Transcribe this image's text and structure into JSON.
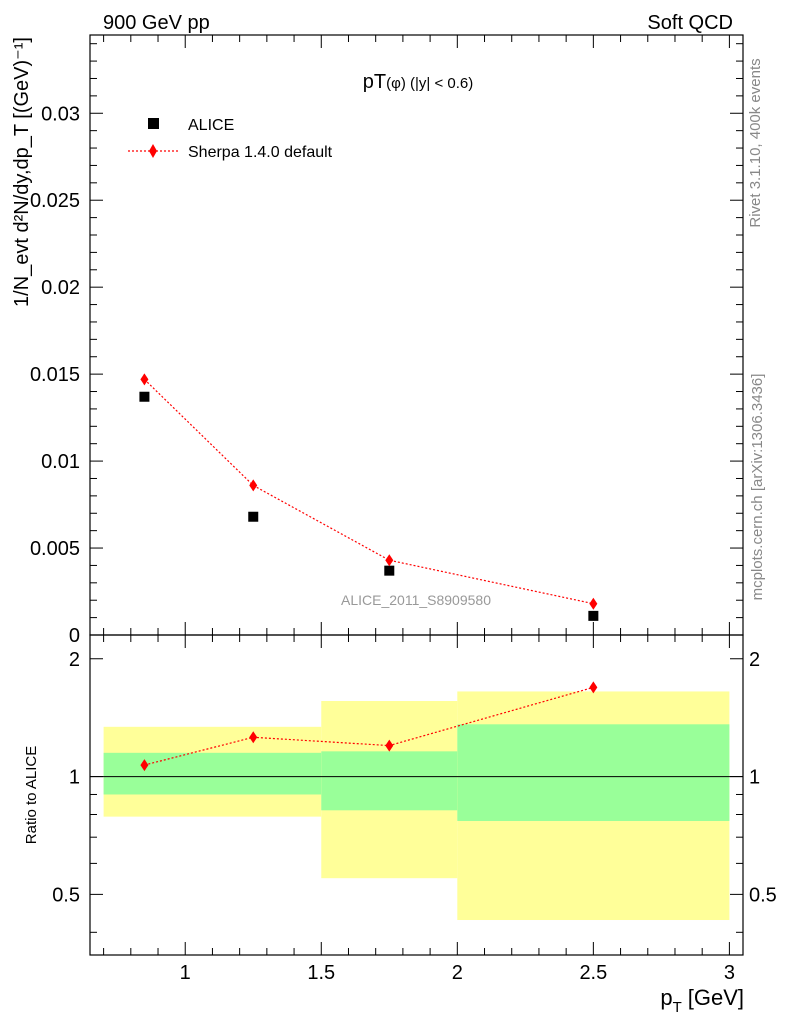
{
  "header": {
    "left": "900 GeV pp",
    "right": "Soft QCD"
  },
  "side_labels": {
    "rivet": "Rivet 3.1.10,  400k events",
    "mcplots": "mcplots.cern.ch [arXiv:1306.3436]"
  },
  "chart_data": [
    {
      "type": "scatter",
      "title_main": "pT",
      "title_sub": "(φ) (|y| < 0.6)",
      "watermark": "ALICE_2011_S8909580",
      "ylabel": "1/N_evt d²N/dy,dp_T [(GeV)⁻¹]",
      "xlim": [
        0.65,
        3.05
      ],
      "ylim": [
        0,
        0.0345
      ],
      "y_ticks": [
        0,
        0.005,
        0.01,
        0.015,
        0.02,
        0.025,
        0.03
      ],
      "y_tick_labels": [
        "0",
        "0.005",
        "0.01",
        "0.015",
        "0.02",
        "0.025",
        "0.03"
      ],
      "legend": {
        "position": "top-left",
        "entries": [
          "ALICE",
          "Sherpa 1.4.0 default"
        ]
      },
      "series": [
        {
          "name": "ALICE",
          "marker": "square",
          "color": "#000000",
          "x": [
            0.85,
            1.25,
            1.75,
            2.5
          ],
          "y": [
            0.0137,
            0.0068,
            0.0037,
            0.0011
          ]
        },
        {
          "name": "Sherpa 1.4.0 default",
          "marker": "diamond",
          "color": "#ff0000",
          "x": [
            0.85,
            1.25,
            1.75,
            2.5
          ],
          "y": [
            0.0147,
            0.0086,
            0.0043,
            0.0018
          ],
          "yerr": [
            0.0003,
            0.0002,
            0.0001,
            0.0001
          ]
        }
      ]
    },
    {
      "type": "scatter",
      "ylabel": "Ratio to ALICE",
      "xlabel_main": "p",
      "xlabel_sub": "T",
      "xlabel_unit": "[GeV]",
      "xlim": [
        0.65,
        3.05
      ],
      "ylim": [
        0.35,
        2.3
      ],
      "x_ticks": [
        1,
        1.5,
        2,
        2.5,
        3
      ],
      "x_tick_labels": [
        "1",
        "1.5",
        "2",
        "2.5",
        "3"
      ],
      "y_ticks": [
        0.5,
        1,
        2
      ],
      "y_tick_labels": [
        "0.5",
        "1",
        "2"
      ],
      "bands": [
        {
          "x0": 0.7,
          "x1": 1.5,
          "yellow": [
            0.79,
            1.34
          ],
          "green": [
            0.9,
            1.15
          ]
        },
        {
          "x0": 1.5,
          "x1": 2.0,
          "yellow": [
            0.55,
            1.56
          ],
          "green": [
            0.82,
            1.16
          ]
        },
        {
          "x0": 2.0,
          "x1": 3.0,
          "yellow": [
            0.43,
            1.65
          ],
          "green": [
            0.77,
            1.36
          ]
        }
      ],
      "band_colors": {
        "yellow": "#ffff99",
        "green": "#99ff99"
      },
      "series": [
        {
          "name": "Sherpa 1.4.0 default / ALICE",
          "marker": "diamond",
          "color": "#ff0000",
          "x": [
            0.85,
            1.25,
            1.75,
            2.5
          ],
          "y": [
            1.07,
            1.26,
            1.2,
            1.69
          ],
          "yerr": [
            0.02,
            0.02,
            0.02,
            0.04
          ]
        }
      ]
    }
  ]
}
